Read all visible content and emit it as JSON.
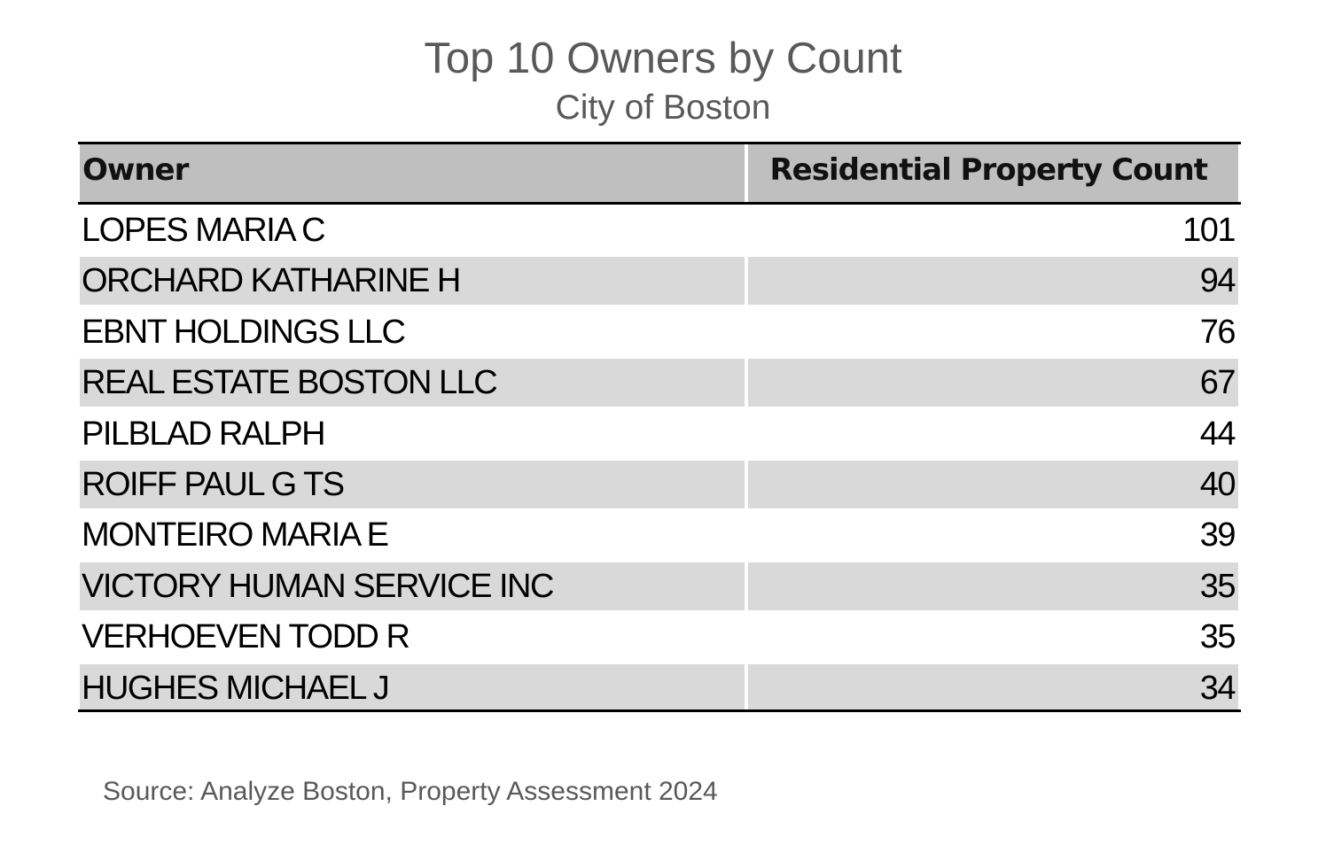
{
  "chart_data": {
    "type": "table",
    "title": "Top 10 Owners by Count",
    "subtitle": "City of Boston",
    "columns": [
      "Owner",
      "Residential Property Count"
    ],
    "rows": [
      {
        "owner": "LOPES MARIA C",
        "count": "101"
      },
      {
        "owner": "ORCHARD KATHARINE H",
        "count": "94"
      },
      {
        "owner": "EBNT HOLDINGS LLC",
        "count": "76"
      },
      {
        "owner": "REAL ESTATE BOSTON LLC",
        "count": "67"
      },
      {
        "owner": "PILBLAD RALPH",
        "count": "44"
      },
      {
        "owner": "ROIFF PAUL G TS",
        "count": "40"
      },
      {
        "owner": "MONTEIRO MARIA E",
        "count": "39"
      },
      {
        "owner": "VICTORY HUMAN SERVICE INC",
        "count": "35"
      },
      {
        "owner": "VERHOEVEN TODD R",
        "count": "35"
      },
      {
        "owner": "HUGHES MICHAEL J",
        "count": "34"
      }
    ],
    "source": "Source: Analyze Boston, Property Assessment 2024"
  },
  "colors": {
    "header_fill": "#bfbfbf",
    "band_fill": "#d9d9d9",
    "title_text": "#595959",
    "rule": "#000000"
  }
}
